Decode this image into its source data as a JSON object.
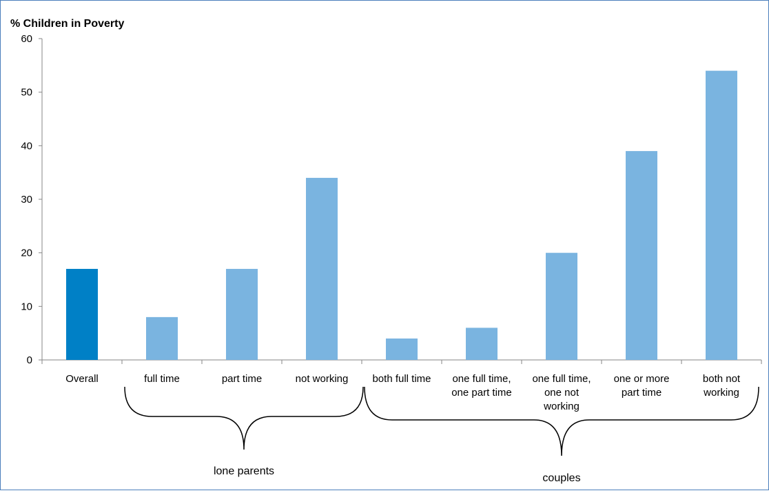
{
  "chart_data": {
    "type": "bar",
    "title": "% Children in Poverty",
    "ylim": [
      0,
      60
    ],
    "yticks": [
      0,
      10,
      20,
      30,
      40,
      50,
      60
    ],
    "grid": false,
    "categories": [
      [
        "Overall"
      ],
      [
        "full time"
      ],
      [
        "part time"
      ],
      [
        "not working"
      ],
      [
        "both full time"
      ],
      [
        "one full time,",
        "one part time"
      ],
      [
        "one full time,",
        "one not",
        "working"
      ],
      [
        "one or more",
        "part time"
      ],
      [
        "both not",
        "working"
      ]
    ],
    "values": [
      17,
      8,
      17,
      34,
      4,
      6,
      20,
      39,
      54
    ],
    "bar_colors": [
      "#0080c6",
      "#7ab4e0",
      "#7ab4e0",
      "#7ab4e0",
      "#7ab4e0",
      "#7ab4e0",
      "#7ab4e0",
      "#7ab4e0",
      "#7ab4e0"
    ],
    "groups": [
      {
        "label": "lone parents",
        "from": 1,
        "to": 3
      },
      {
        "label": "couples",
        "from": 4,
        "to": 8
      }
    ]
  }
}
